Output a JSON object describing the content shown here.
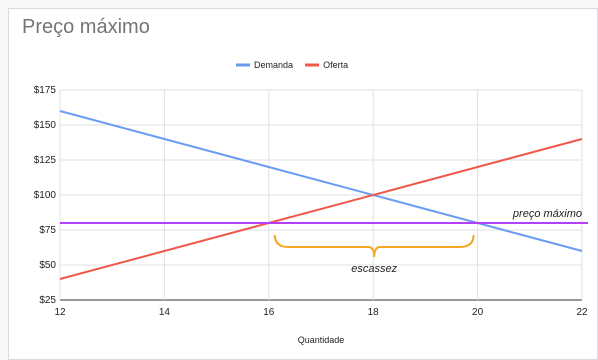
{
  "chart_data": {
    "type": "line",
    "title": "Preço máximo",
    "xlabel": "Quantidade",
    "ylabel": "",
    "xlim": [
      12,
      22
    ],
    "ylim": [
      25,
      175
    ],
    "x_ticks": [
      "12",
      "14",
      "16",
      "18",
      "20",
      "22"
    ],
    "y_ticks": [
      "$25",
      "$50",
      "$75",
      "$100",
      "$125",
      "$150",
      "$175"
    ],
    "grid": true,
    "legend_position": "top",
    "series": [
      {
        "name": "Demanda",
        "color": "#6a9cf3",
        "x": [
          12,
          22
        ],
        "y": [
          160,
          60
        ]
      },
      {
        "name": "Oferta",
        "color": "#f0584a",
        "x": [
          12,
          22
        ],
        "y": [
          40,
          140
        ]
      }
    ],
    "annotations": {
      "price_ceiling": {
        "label": "preço máximo",
        "y": 80,
        "color": "#b340f4"
      },
      "shortage": {
        "label": "escassez",
        "x_from": 16,
        "x_to": 20,
        "color": "#f6a623"
      }
    }
  }
}
